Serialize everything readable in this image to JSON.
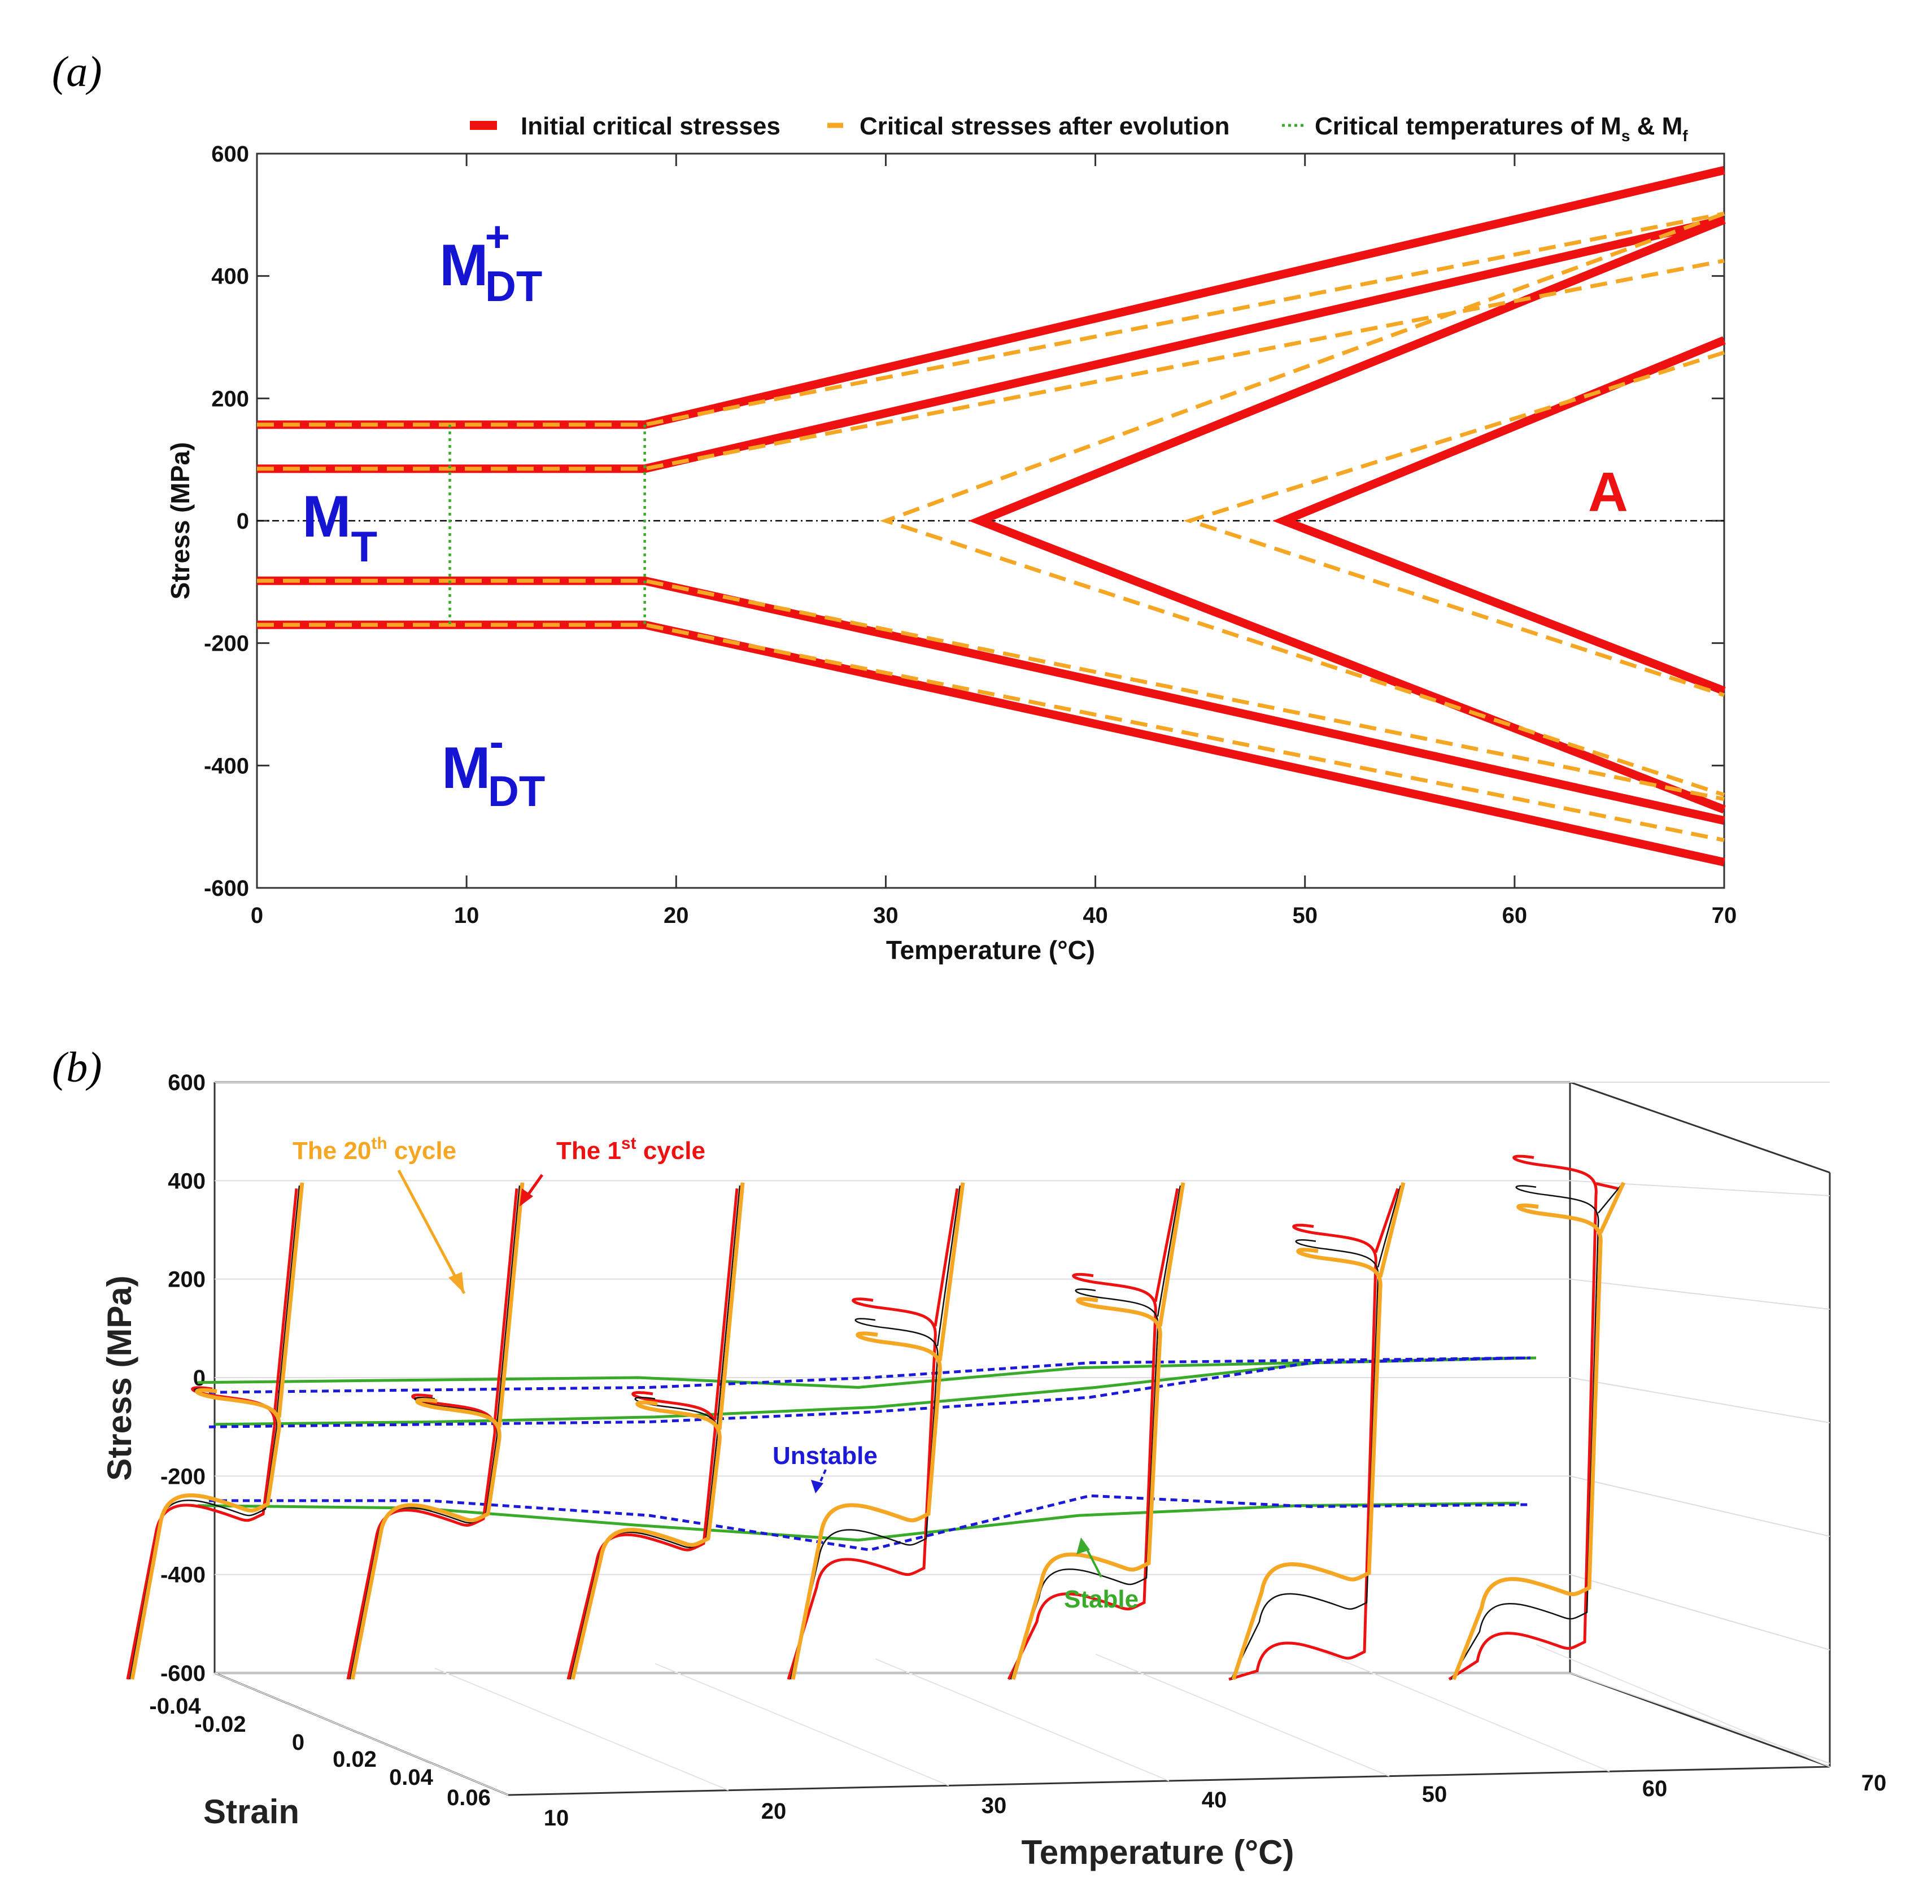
{
  "panel_a": {
    "label": "(a)"
  },
  "panel_b": {
    "label": "(b)"
  },
  "chart_data": [
    {
      "type": "line",
      "panel": "(a)",
      "xlabel": "Temperature (°C)",
      "ylabel": "Stress (MPa)",
      "xlim": [
        0,
        70
      ],
      "ylim": [
        -600,
        600
      ],
      "xticks": [
        0,
        10,
        20,
        30,
        40,
        50,
        60,
        70
      ],
      "yticks": [
        -600,
        -400,
        -200,
        0,
        200,
        400,
        600
      ],
      "legend": {
        "placement": "top",
        "items": [
          {
            "label": "Initial critical stresses",
            "color": "#ee1111",
            "style": "solid"
          },
          {
            "label": "Critical stresses after evolution",
            "color": "#f5a623",
            "style": "dashed"
          },
          {
            "label": "Critical temperatures of M",
            "sub1": "s",
            "mid": " & M",
            "sub2": "f",
            "color": "#3aaa2a",
            "style": "dotted"
          }
        ]
      },
      "region_labels": [
        {
          "main": "M",
          "sup": "+",
          "sub": "DT",
          "x": 11.5,
          "y": 390,
          "color": "#1414d2"
        },
        {
          "main": "M",
          "sub": "T",
          "x": 3.5,
          "y": 0,
          "color": "#1414d2"
        },
        {
          "main": "M",
          "sup": "-",
          "sub": "DT",
          "x": 11.5,
          "y": -410,
          "color": "#1414d2"
        },
        {
          "main": "A",
          "x": 64.5,
          "y": 40,
          "color": "#ee1111"
        }
      ],
      "series": [
        {
          "name": "Initial critical stresses",
          "color": "#ee1111",
          "style": "solid",
          "lines": [
            [
              [
                0,
                157
              ],
              [
                18.5,
                157
              ],
              [
                70,
                573
              ]
            ],
            [
              [
                0,
                85
              ],
              [
                18.5,
                85
              ],
              [
                70,
                492
              ]
            ],
            [
              [
                0,
                -98
              ],
              [
                18.5,
                -98
              ],
              [
                70,
                -490
              ]
            ],
            [
              [
                0,
                -170
              ],
              [
                18.5,
                -170
              ],
              [
                70,
                -558
              ]
            ],
            [
              [
                70,
                492
              ],
              [
                34.5,
                0
              ],
              [
                70,
                -472
              ]
            ],
            [
              [
                70,
                295
              ],
              [
                49,
                0
              ],
              [
                70,
                -278
              ]
            ]
          ]
        },
        {
          "name": "Critical stresses after evolution",
          "color": "#f5a623",
          "style": "dashed",
          "lines": [
            [
              [
                0,
                157
              ],
              [
                18.5,
                157
              ],
              [
                70,
                502
              ]
            ],
            [
              [
                0,
                85
              ],
              [
                18.5,
                85
              ],
              [
                70,
                425
              ]
            ],
            [
              [
                0,
                -98
              ],
              [
                18.5,
                -98
              ],
              [
                70,
                -455
              ]
            ],
            [
              [
                0,
                -170
              ],
              [
                18.5,
                -170
              ],
              [
                70,
                -522
              ]
            ],
            [
              [
                70,
                502
              ],
              [
                30,
                0
              ],
              [
                70,
                -448
              ]
            ],
            [
              [
                70,
                275
              ],
              [
                44.5,
                0
              ],
              [
                70,
                -285
              ]
            ]
          ]
        },
        {
          "name": "Critical temperatures of Ms & Mf",
          "color": "#3aaa2a",
          "style": "dotted",
          "lines": [
            [
              [
                9.2,
                157
              ],
              [
                9.2,
                -170
              ]
            ],
            [
              [
                18.5,
                157
              ],
              [
                18.5,
                -170
              ]
            ]
          ]
        },
        {
          "name": "zero line",
          "color": "#000000",
          "style": "dashdot",
          "lines": [
            [
              [
                0,
                0
              ],
              [
                70,
                0
              ]
            ]
          ]
        }
      ]
    },
    {
      "type": "line",
      "panel": "(b)",
      "projection": "3d",
      "xlabel": "Temperature (°C)",
      "ylabel": "Strain",
      "zlabel": "Stress (MPa)",
      "xlim": [
        10,
        70
      ],
      "ylim": [
        -0.04,
        0.06
      ],
      "zlim": [
        -600,
        600
      ],
      "xticks": [
        10,
        20,
        30,
        40,
        50,
        60,
        70
      ],
      "yticks": [
        "-0.04",
        "-0.02",
        "0",
        "0.02",
        "0.04",
        "0.06"
      ],
      "zticks": [
        -600,
        -400,
        -200,
        0,
        200,
        400,
        600
      ],
      "annotations": [
        {
          "text": "The 20",
          "sup": "th",
          "tail": " cycle",
          "color": "#f5a623"
        },
        {
          "text": "The 1",
          "sup": "st",
          "tail": " cycle",
          "color": "#ee1111"
        },
        {
          "text": "Unstable",
          "color": "#1a1ad8"
        },
        {
          "text": "Stable",
          "color": "#3aaa2a"
        }
      ],
      "loop_temperatures": [
        10,
        20,
        30,
        40,
        50,
        60,
        70
      ],
      "series": [
        {
          "name": "The 1st cycle",
          "color": "#ee1111",
          "upper_plateau": [
            -30,
            -45,
            -40,
            150,
            200,
            300,
            440
          ],
          "lower_plateau": [
            -270,
            -280,
            -330,
            -380,
            -450,
            -550,
            -530
          ]
        },
        {
          "name": "The 20th cycle",
          "color": "#f5a623",
          "upper_plateau": [
            -35,
            -55,
            -60,
            80,
            150,
            250,
            340
          ],
          "lower_plateau": [
            -250,
            -270,
            -320,
            -270,
            -370,
            -390,
            -420
          ]
        },
        {
          "name": "Intermediate cycles",
          "color": "#111111",
          "upper_plateau": [
            -32,
            -50,
            -50,
            110,
            170,
            270,
            380
          ],
          "lower_plateau": [
            -260,
            -275,
            -325,
            -320,
            -400,
            -450,
            -470
          ]
        },
        {
          "name": "Stable",
          "color": "#3aaa2a",
          "style": "solid"
        },
        {
          "name": "Unstable",
          "color": "#1a1ad8",
          "style": "dashed"
        }
      ]
    }
  ]
}
